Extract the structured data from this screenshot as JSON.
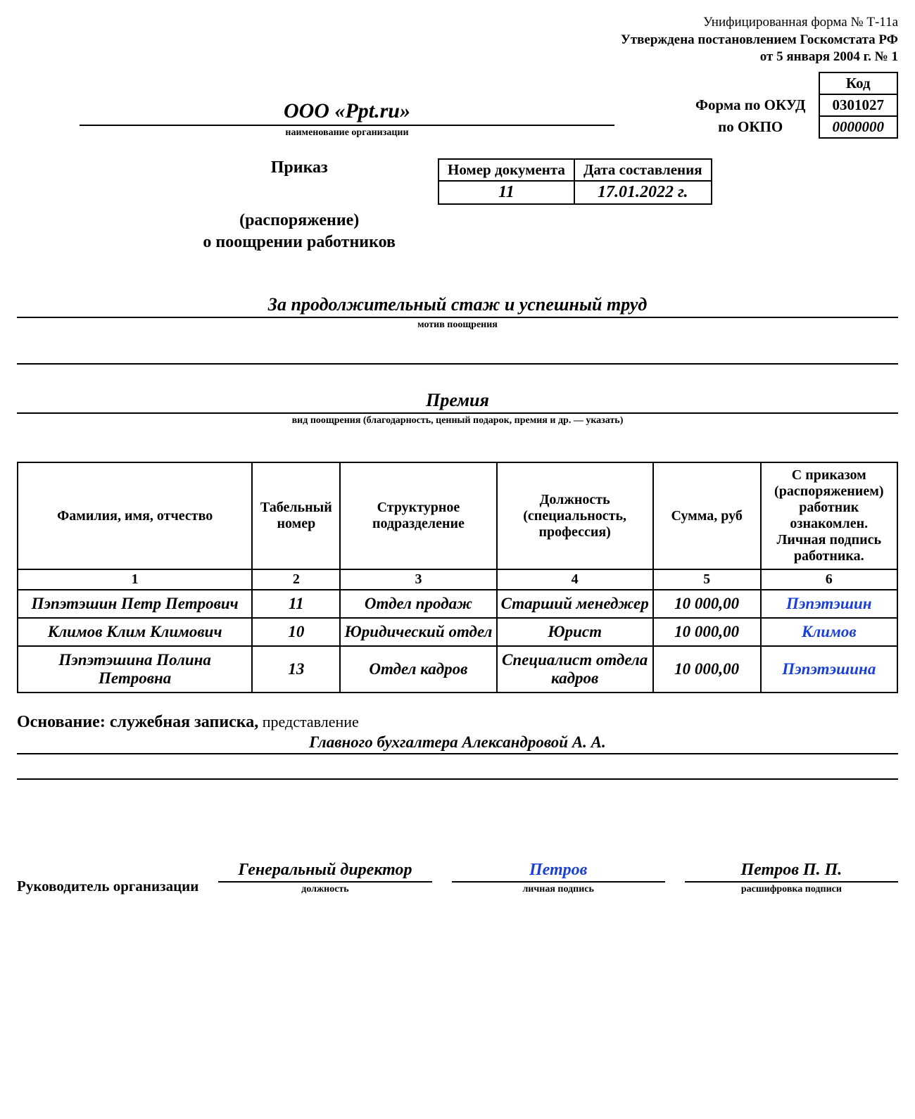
{
  "header": {
    "form_line": "Унифицированная форма № Т-11а",
    "approved_line": "Утверждена постановлением Госкомстата РФ",
    "date_line": "от 5 января 2004 г. № 1"
  },
  "codes": {
    "code_label": "Код",
    "okud_label": "Форма по ОКУД",
    "okud_value": "0301027",
    "okpo_label": "по ОКПО",
    "okpo_value": "0000000"
  },
  "org": {
    "name": "ООО «Ppt.ru»",
    "caption": "наименование организации"
  },
  "title": {
    "prikaz": "Приказ",
    "rasp": "(распоряжение)",
    "about": "о поощрении работников"
  },
  "docmeta": {
    "num_label": "Номер документа",
    "date_label": "Дата составления",
    "num_value": "11",
    "date_value": "17.01.2022 г."
  },
  "motive": {
    "text": "За продолжительный стаж и успешный труд",
    "caption": "мотив поощрения"
  },
  "reward": {
    "text": "Премия",
    "caption": "вид поощрения (благодарность, ценный подарок, премия и др. — указать)"
  },
  "table": {
    "headers": [
      "Фамилия, имя, отчество",
      "Табельный номер",
      "Структурное подразделение",
      "Должность (специальность, профессия)",
      "Сумма, руб",
      "С приказом (распоряжением) работник ознакомлен. Личная подпись работника."
    ],
    "col_widths_pct": [
      24,
      9,
      16,
      16,
      11,
      14
    ],
    "nums": [
      "1",
      "2",
      "3",
      "4",
      "5",
      "6"
    ],
    "rows": [
      {
        "fio": "Пэпэтэшин Петр Петрович",
        "tab": "11",
        "dept": "Отдел продаж",
        "pos": "Старший менеджер",
        "sum": "10 000,00",
        "sign": "Пэпэтэшин"
      },
      {
        "fio": "Климов Клим Климович",
        "tab": "10",
        "dept": "Юридический отдел",
        "pos": "Юрист",
        "sum": "10 000,00",
        "sign": "Климов"
      },
      {
        "fio": "Пэпэтэшина Полина Петровна",
        "tab": "13",
        "dept": "Отдел кадров",
        "pos": "Специалист отдела кадров",
        "sum": "10 000,00",
        "sign": "Пэпэтэшина"
      }
    ]
  },
  "basis": {
    "lead": "Основание: служебная записка,",
    "trail": "представление",
    "line2": "Главного бухгалтера Александровой А. А."
  },
  "signature": {
    "label": "Руководитель организации",
    "position": "Генеральный директор",
    "position_cap": "должность",
    "sign": "Петров",
    "sign_cap": "личная подпись",
    "name": "Петров П. П.",
    "name_cap": "расшифровка подписи"
  },
  "colors": {
    "signature_blue": "#1a3fd6",
    "text": "#000000",
    "background": "#ffffff"
  }
}
